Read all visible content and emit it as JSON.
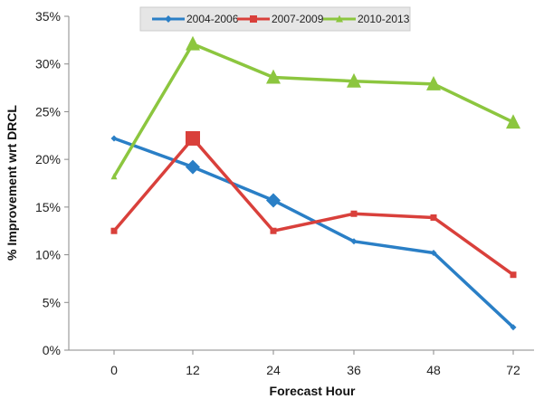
{
  "chart_data": {
    "type": "line",
    "xlabel": "Forecast Hour",
    "ylabel": "% Improvement wrt DRCL",
    "categories": [
      "0",
      "12",
      "24",
      "36",
      "48",
      "72"
    ],
    "ylim": [
      0,
      35
    ],
    "yticks": [
      "0%",
      "5%",
      "10%",
      "15%",
      "20%",
      "25%",
      "30%",
      "35%"
    ],
    "grid": false,
    "legend_position": "top",
    "series": [
      {
        "name": "2004-2006",
        "values": [
          22.2,
          19.2,
          15.7,
          11.4,
          10.2,
          2.4
        ],
        "color": "#2a7fc6",
        "marker": "diamond"
      },
      {
        "name": "2007-2009",
        "values": [
          12.5,
          22.2,
          12.5,
          14.3,
          13.9,
          7.9
        ],
        "color": "#d9403b",
        "marker": "square"
      },
      {
        "name": "2010-2013",
        "values": [
          18.2,
          32.1,
          28.6,
          28.2,
          27.9,
          23.9
        ],
        "color": "#8cc63f",
        "marker": "triangle"
      }
    ]
  }
}
